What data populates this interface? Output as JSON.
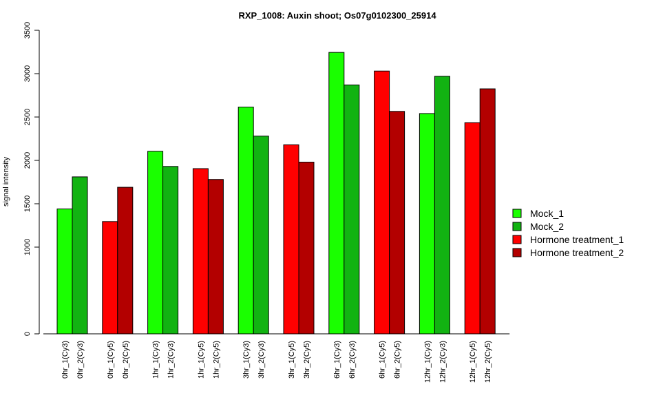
{
  "chart_data": {
    "type": "bar",
    "title": "RXP_1008: Auxin shoot; Os07g0102300_25914",
    "xlabel": "",
    "ylabel": "signal intensity",
    "ylim": [
      0,
      3500
    ],
    "yticks": [
      0,
      1000,
      1500,
      2000,
      2500,
      3000,
      3500
    ],
    "grid": false,
    "legend_position": "right",
    "colors": {
      "Mock_1": "#1aff00",
      "Mock_2": "#12b312",
      "Hormone treatment_1": "#ff0000",
      "Hormone treatment_2": "#b30000"
    },
    "legend": [
      "Mock_1",
      "Mock_2",
      "Hormone treatment_1",
      "Hormone treatment_2"
    ],
    "bars": [
      {
        "label": "0hr_1(Cy3)",
        "value": 1440,
        "series": "Mock_1"
      },
      {
        "label": "0hr_2(Cy3)",
        "value": 1810,
        "series": "Mock_2"
      },
      {
        "label": "0hr_1(Cy5)",
        "value": 1295,
        "series": "Hormone treatment_1"
      },
      {
        "label": "0hr_2(Cy5)",
        "value": 1690,
        "series": "Hormone treatment_2"
      },
      {
        "label": "1hr_1(Cy3)",
        "value": 2105,
        "series": "Mock_1"
      },
      {
        "label": "1hr_2(Cy3)",
        "value": 1930,
        "series": "Mock_2"
      },
      {
        "label": "1hr_1(Cy5)",
        "value": 1905,
        "series": "Hormone treatment_1"
      },
      {
        "label": "1hr_2(Cy5)",
        "value": 1780,
        "series": "Hormone treatment_2"
      },
      {
        "label": "3hr_1(Cy3)",
        "value": 2615,
        "series": "Mock_1"
      },
      {
        "label": "3hr_2(Cy3)",
        "value": 2280,
        "series": "Mock_2"
      },
      {
        "label": "3hr_1(Cy5)",
        "value": 2180,
        "series": "Hormone treatment_1"
      },
      {
        "label": "3hr_2(Cy5)",
        "value": 1980,
        "series": "Hormone treatment_2"
      },
      {
        "label": "6hr_1(Cy3)",
        "value": 3245,
        "series": "Mock_1"
      },
      {
        "label": "6hr_2(Cy3)",
        "value": 2870,
        "series": "Mock_2"
      },
      {
        "label": "6hr_1(Cy5)",
        "value": 3030,
        "series": "Hormone treatment_1"
      },
      {
        "label": "6hr_2(Cy5)",
        "value": 2565,
        "series": "Hormone treatment_2"
      },
      {
        "label": "12hr_1(Cy3)",
        "value": 2540,
        "series": "Mock_1"
      },
      {
        "label": "12hr_2(Cy3)",
        "value": 2970,
        "series": "Mock_2"
      },
      {
        "label": "12hr_1(Cy5)",
        "value": 2435,
        "series": "Hormone treatment_1"
      },
      {
        "label": "12hr_2(Cy5)",
        "value": 2825,
        "series": "Hormone treatment_2"
      }
    ]
  }
}
